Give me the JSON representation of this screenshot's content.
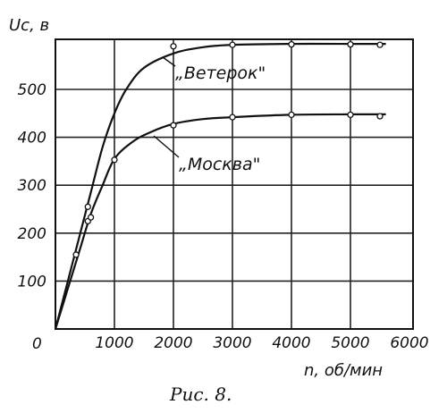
{
  "caption": "Рис. 8.",
  "chart_data": {
    "type": "line",
    "ylabel": "Uc, в",
    "xlabel": "n, об/мин",
    "origin_label": "0",
    "xlim": [
      0,
      6000
    ],
    "ylim": [
      0,
      650
    ],
    "xticks": [
      1000,
      2000,
      3000,
      4000,
      5000,
      6000
    ],
    "xtick_labels": [
      "1000",
      "2000",
      "3000",
      "4000",
      "5000",
      "6000"
    ],
    "yticks": [
      100,
      200,
      300,
      400,
      500
    ],
    "ytick_labels": [
      "100",
      "200",
      "300",
      "400",
      "500"
    ],
    "grid": true,
    "series": [
      {
        "name": "„Ветерок\"",
        "curve": [
          [
            0,
            0
          ],
          [
            200,
            95
          ],
          [
            400,
            190
          ],
          [
            600,
            285
          ],
          [
            800,
            380
          ],
          [
            1000,
            450
          ],
          [
            1200,
            500
          ],
          [
            1500,
            545
          ],
          [
            2000,
            575
          ],
          [
            2500,
            588
          ],
          [
            3000,
            593
          ],
          [
            4000,
            595
          ],
          [
            5000,
            595
          ],
          [
            5600,
            595
          ]
        ],
        "points": [
          [
            550,
            255
          ],
          [
            2000,
            590
          ],
          [
            3000,
            593
          ],
          [
            4000,
            594
          ],
          [
            5000,
            594
          ],
          [
            5500,
            593
          ]
        ]
      },
      {
        "name": "„Москва\"",
        "curve": [
          [
            0,
            0
          ],
          [
            200,
            80
          ],
          [
            400,
            160
          ],
          [
            600,
            240
          ],
          [
            800,
            300
          ],
          [
            1000,
            355
          ],
          [
            1300,
            390
          ],
          [
            1600,
            410
          ],
          [
            2000,
            428
          ],
          [
            2500,
            438
          ],
          [
            3000,
            442
          ],
          [
            4000,
            447
          ],
          [
            5000,
            448
          ],
          [
            5600,
            448
          ]
        ],
        "points": [
          [
            350,
            155
          ],
          [
            550,
            225
          ],
          [
            600,
            233
          ],
          [
            1000,
            353
          ],
          [
            2000,
            425
          ],
          [
            3000,
            442
          ],
          [
            4000,
            447
          ],
          [
            5000,
            447
          ],
          [
            5500,
            444
          ]
        ]
      }
    ]
  }
}
